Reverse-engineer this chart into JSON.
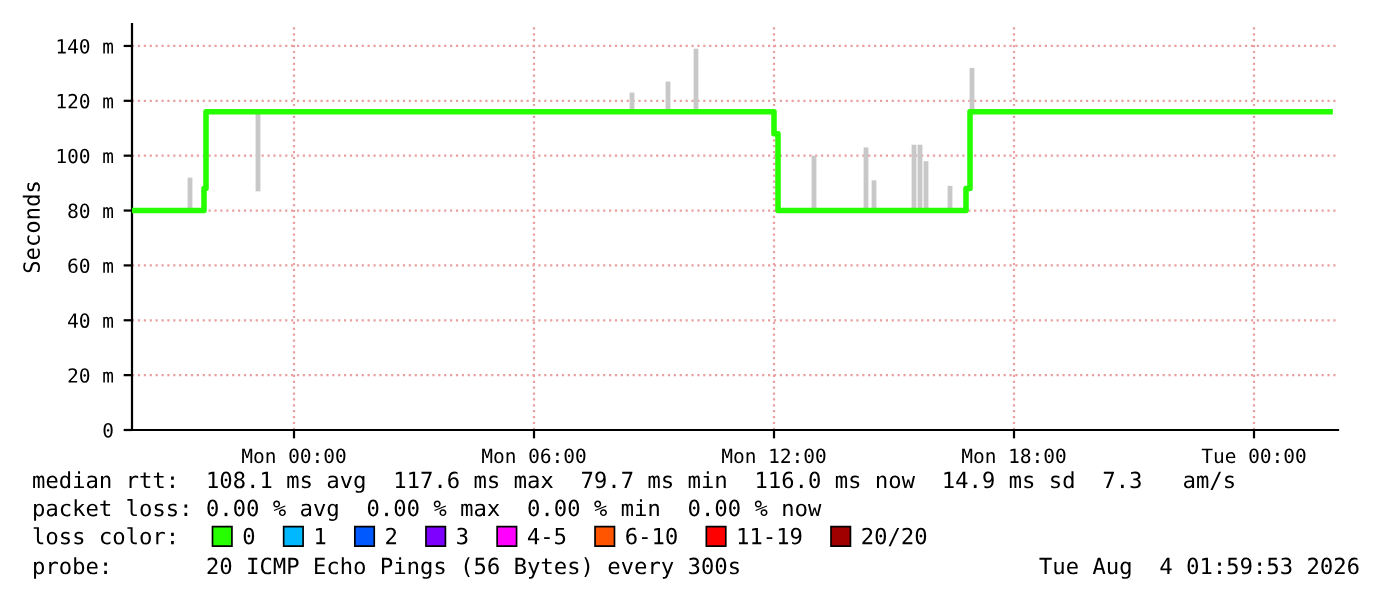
{
  "chart_data": {
    "type": "step",
    "ylabel": "Seconds",
    "legend_title": "loss color:",
    "legend": "bottom",
    "grid": true,
    "xlim": [
      "2026-08-02T19:57",
      "2026-08-04T02:06"
    ],
    "xticks": [
      {
        "value": "2026-08-03T00:00",
        "label": "Mon 00:00"
      },
      {
        "value": "2026-08-03T06:00",
        "label": "Mon 06:00"
      },
      {
        "value": "2026-08-03T12:00",
        "label": "Mon 12:00"
      },
      {
        "value": "2026-08-03T18:00",
        "label": "Mon 18:00"
      },
      {
        "value": "2026-08-04T00:00",
        "label": "Tue 00:00"
      }
    ],
    "ylim": [
      0,
      148
    ],
    "yticks": [
      0,
      {
        "value": 20,
        "label": "20 m"
      },
      {
        "value": 40,
        "label": "40 m"
      },
      {
        "value": 60,
        "label": "60 m"
      },
      {
        "value": 80,
        "label": "80 m"
      },
      {
        "value": 100,
        "label": "100 m"
      },
      {
        "value": 120,
        "label": "120 m"
      },
      {
        "value": 140,
        "label": "140 m"
      }
    ],
    "series": [
      {
        "type": "bar",
        "color": "#c8c8c8",
        "x": [
          "2026-08-02T21:24",
          "2026-08-02T23:06",
          "2026-08-03T08:27",
          "2026-08-03T09:21",
          "2026-08-03T10:03",
          "2026-08-03T13:00",
          "2026-08-03T14:18",
          "2026-08-03T14:30",
          "2026-08-03T15:30",
          "2026-08-03T15:39",
          "2026-08-03T15:48",
          "2026-08-03T16:24",
          "2026-08-03T16:57"
        ],
        "base": [
          80,
          87,
          116,
          116,
          116,
          80,
          80,
          80,
          80,
          80,
          80,
          80,
          116
        ],
        "values": [
          12,
          29,
          7,
          11,
          23,
          20,
          23,
          11,
          24,
          24,
          18,
          9,
          16
        ]
      },
      {
        "name": "0",
        "color": "#26ff00",
        "x": [
          "2026-08-02T19:57",
          "2026-08-02T21:45",
          "2026-08-02T21:48",
          "2026-08-03T12:00",
          "2026-08-03T12:06",
          "2026-08-03T16:48",
          "2026-08-03T16:54",
          "2026-08-04T01:54"
        ],
        "values": [
          80,
          88,
          116,
          108,
          80,
          88,
          116,
          116
        ]
      },
      {
        "name": "1",
        "color": "#00b8ff"
      },
      {
        "name": "2",
        "color": "#0059ff"
      },
      {
        "name": "3",
        "color": "#7e00ff"
      },
      {
        "name": "4-5",
        "color": "#ff00ff"
      },
      {
        "name": "6-10",
        "color": "#ff5500"
      },
      {
        "name": "11-19",
        "color": "#ff0000"
      },
      {
        "name": "20/20",
        "color": "#a10000"
      }
    ],
    "annotations": [
      "median rtt:  108.1 ms avg  117.6 ms max  79.7 ms min  116.0 ms now  14.9 ms sd  7.3   am/s",
      "packet loss: 0.00 % avg  0.00 % max  0.00 % min  0.00 % now",
      "probe:       20 ICMP Echo Pings (56 Bytes) every 300s",
      "Tue Aug  4 01:59:53 2026"
    ]
  }
}
